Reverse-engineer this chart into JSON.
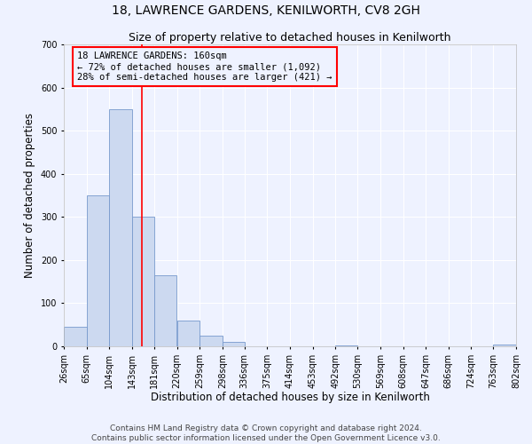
{
  "title": "18, LAWRENCE GARDENS, KENILWORTH, CV8 2GH",
  "subtitle": "Size of property relative to detached houses in Kenilworth",
  "xlabel": "Distribution of detached houses by size in Kenilworth",
  "ylabel": "Number of detached properties",
  "bin_edges": [
    26,
    65,
    104,
    143,
    181,
    220,
    259,
    298,
    336,
    375,
    414,
    453,
    492,
    530,
    569,
    608,
    647,
    686,
    724,
    763,
    802
  ],
  "bar_heights": [
    45,
    350,
    550,
    300,
    165,
    60,
    25,
    10,
    0,
    0,
    0,
    0,
    3,
    0,
    0,
    0,
    0,
    0,
    0,
    5
  ],
  "bar_color": "#ccd9f0",
  "bar_edge_color": "#7799cc",
  "vline_x": 160,
  "vline_color": "red",
  "annotation_title": "18 LAWRENCE GARDENS: 160sqm",
  "annotation_line1": "← 72% of detached houses are smaller (1,092)",
  "annotation_line2": "28% of semi-detached houses are larger (421) →",
  "annotation_box_color": "red",
  "ylim": [
    0,
    700
  ],
  "yticks": [
    0,
    100,
    200,
    300,
    400,
    500,
    600,
    700
  ],
  "tick_labels": [
    "26sqm",
    "65sqm",
    "104sqm",
    "143sqm",
    "181sqm",
    "220sqm",
    "259sqm",
    "298sqm",
    "336sqm",
    "375sqm",
    "414sqm",
    "453sqm",
    "492sqm",
    "530sqm",
    "569sqm",
    "608sqm",
    "647sqm",
    "686sqm",
    "724sqm",
    "763sqm",
    "802sqm"
  ],
  "footer_line1": "Contains HM Land Registry data © Crown copyright and database right 2024.",
  "footer_line2": "Contains public sector information licensed under the Open Government Licence v3.0.",
  "background_color": "#eef2ff",
  "grid_color": "#ffffff",
  "title_fontsize": 10,
  "subtitle_fontsize": 9,
  "axis_label_fontsize": 8.5,
  "tick_fontsize": 7,
  "footer_fontsize": 6.5,
  "annotation_fontsize": 7.5
}
